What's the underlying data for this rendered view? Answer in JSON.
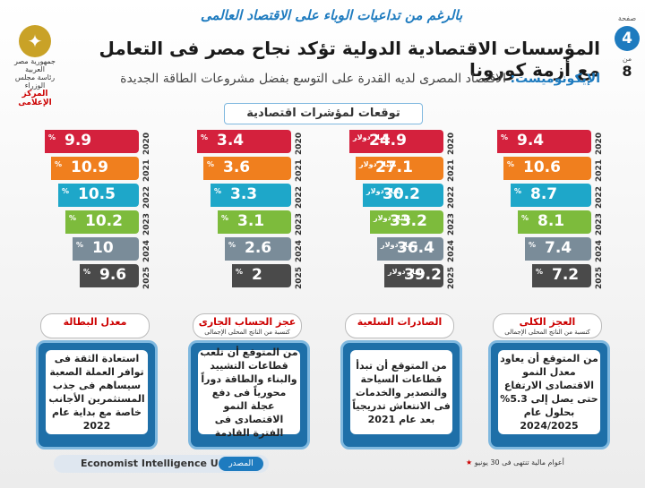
{
  "header": {
    "banner": "بالرغم من تداعيات الوباء على الاقتصاد العالمى",
    "title": "المؤسسات الاقتصادية الدولية تؤكد نجاح مصر فى التعامل مع أزمة كورونا",
    "subtitle_highlight": "الإيكونوميست:",
    "subtitle_rest": "الاقتصاد المصرى لديه القدرة على التوسع بفضل مشروعات الطاقة الجديدة",
    "logo_line1": "رئاسة مجلس الوزراء",
    "logo_line2": "جمهورية مصر العربية",
    "logo_line3": "المركز الإعلامى",
    "page_label": "صفحة",
    "page_current": "4",
    "page_of": "من",
    "page_total": "8"
  },
  "section_title": "توقعات لمؤشرات اقتصادية",
  "columns": [
    {
      "label": "العجز الكلى",
      "sublabel": "كنسبة من الناتج المحلى الإجمالى",
      "unit": "%",
      "years": [
        "2020",
        "2021",
        "2022",
        "2023",
        "2024",
        "2025"
      ],
      "values": [
        "9.4",
        "10.6",
        "8.7",
        "8.1",
        "7.4",
        "7.2"
      ],
      "card": "من المتوقع أن يعاود معدل النمو الاقتصادى الارتفاع حتى يصل إلى 5.3% بحلول عام 2024/2025"
    },
    {
      "label": "الصادرات السلعية",
      "sublabel": "",
      "unit": "مليار دولار",
      "years": [
        "2020",
        "2021",
        "2022",
        "2023",
        "2024",
        "2025"
      ],
      "values": [
        "24.9",
        "27.1",
        "30.2",
        "33.2",
        "36.4",
        "39.2"
      ],
      "card": "من المتوقع أن تبدأ قطاعات السياحة والتصدير والخدمات فى الانتعاش تدريجياً بعد عام 2021"
    },
    {
      "label": "عجز الحساب الجارى",
      "sublabel": "كنسبة من الناتج المحلى الإجمالى",
      "unit": "%",
      "years": [
        "2020",
        "2021",
        "2022",
        "2023",
        "2024",
        "2025"
      ],
      "values": [
        "3.4",
        "3.6",
        "3.3",
        "3.1",
        "2.6",
        "2"
      ],
      "card": "من المتوقع أن تلعب قطاعات التشييد والبناء والطاقة دوراً محورياً فى دفع عجلة النمو الاقتصادى فى الفترة القادمة"
    },
    {
      "label": "معدل البطالة",
      "sublabel": "",
      "unit": "%",
      "years": [
        "2020",
        "2021",
        "2022",
        "2023",
        "2024",
        "2025"
      ],
      "values": [
        "9.9",
        "10.9",
        "10.5",
        "10.2",
        "10",
        "9.6"
      ],
      "card": "استعادة الثقة فى توافر العملة الصعبة سيساهم فى جذب المستثمرين الأجانب خاصة مع بداية عام 2022"
    }
  ],
  "footer": {
    "source_label": "المصدر",
    "source": "Economist Intelligence Unit",
    "note": "أعوام مالية تنتهى فى 30 يونيو"
  },
  "colors": {
    "bar_colors": [
      "#d4213d",
      "#f07f1e",
      "#1ea7c9",
      "#7dbb3c",
      "#7a8c99",
      "#4a4a4a"
    ],
    "accent": "#1e7bbf"
  }
}
